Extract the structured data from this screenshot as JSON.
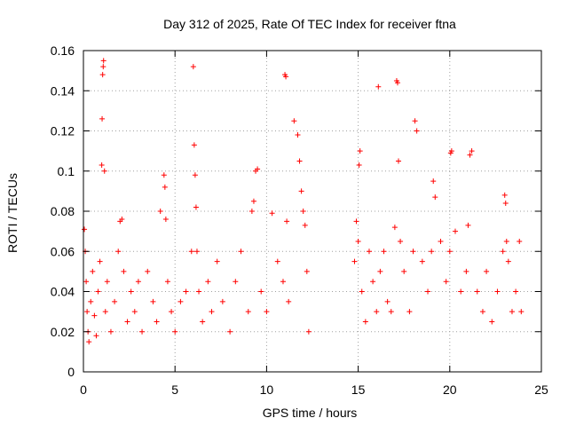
{
  "chart_data": {
    "type": "scatter",
    "title": "Day 312 of 2025, Rate Of TEC Index for receiver ftna",
    "xlabel": "GPS time / hours",
    "ylabel": "ROTI / TECUs",
    "xlim": [
      0,
      25
    ],
    "ylim": [
      0,
      0.16
    ],
    "xticks": [
      0,
      5,
      10,
      15,
      20,
      25
    ],
    "yticks": [
      0,
      0.02,
      0.04,
      0.06,
      0.08,
      0.1,
      0.12,
      0.14,
      0.16
    ],
    "xtick_labels": [
      "0",
      "5",
      "10",
      "15",
      "20",
      "25"
    ],
    "ytick_labels": [
      "0",
      "0.02",
      "0.04",
      "0.06",
      "0.08",
      "0.1",
      "0.12",
      "0.14",
      "0.16"
    ],
    "grid": true,
    "legend": "none",
    "marker": "+",
    "color": "#ff0000",
    "series": [
      {
        "x": [
          0.05,
          0.1,
          0.15,
          0.2,
          0.25,
          0.3,
          0.4,
          0.5,
          0.6,
          0.7,
          0.8,
          0.9,
          1.0,
          1.02,
          1.05,
          1.08,
          1.1,
          1.15,
          1.2,
          1.3,
          1.5,
          1.7,
          1.9,
          2.0,
          2.1,
          2.2,
          2.4,
          2.6,
          2.8,
          3.0,
          3.2,
          3.5,
          3.8,
          4.0,
          4.2,
          4.4,
          4.45,
          4.5,
          4.6,
          4.8,
          5.0,
          5.3,
          5.6,
          5.9,
          6.0,
          6.05,
          6.1,
          6.15,
          6.2,
          6.3,
          6.5,
          6.8,
          7.0,
          7.3,
          7.6,
          8.0,
          8.3,
          8.6,
          9.0,
          9.2,
          9.3,
          9.4,
          9.5,
          9.7,
          10.0,
          10.3,
          10.6,
          10.9,
          11.0,
          11.05,
          11.1,
          11.2,
          11.5,
          11.7,
          11.8,
          11.9,
          12.0,
          12.1,
          12.2,
          12.3,
          14.8,
          14.9,
          15.0,
          15.05,
          15.1,
          15.2,
          15.4,
          15.6,
          15.8,
          16.0,
          16.1,
          16.2,
          16.4,
          16.6,
          16.8,
          17.0,
          17.1,
          17.15,
          17.2,
          17.3,
          17.5,
          17.8,
          18.0,
          18.1,
          18.2,
          18.5,
          18.8,
          19.0,
          19.1,
          19.2,
          19.5,
          19.8,
          20.0,
          20.05,
          20.1,
          20.3,
          20.6,
          20.9,
          21.0,
          21.1,
          21.2,
          21.5,
          21.8,
          22.0,
          22.3,
          22.6,
          22.9,
          23.0,
          23.05,
          23.1,
          23.2,
          23.4,
          23.6,
          23.8,
          23.9
        ],
        "y": [
          0.071,
          0.06,
          0.045,
          0.03,
          0.02,
          0.015,
          0.035,
          0.05,
          0.028,
          0.018,
          0.04,
          0.055,
          0.103,
          0.126,
          0.148,
          0.152,
          0.155,
          0.1,
          0.03,
          0.045,
          0.02,
          0.035,
          0.06,
          0.075,
          0.076,
          0.05,
          0.025,
          0.04,
          0.03,
          0.045,
          0.02,
          0.05,
          0.035,
          0.025,
          0.08,
          0.098,
          0.092,
          0.076,
          0.045,
          0.03,
          0.02,
          0.035,
          0.04,
          0.06,
          0.152,
          0.113,
          0.098,
          0.082,
          0.06,
          0.04,
          0.025,
          0.045,
          0.03,
          0.055,
          0.035,
          0.02,
          0.045,
          0.06,
          0.03,
          0.08,
          0.085,
          0.1,
          0.101,
          0.04,
          0.03,
          0.079,
          0.055,
          0.045,
          0.148,
          0.147,
          0.075,
          0.035,
          0.125,
          0.118,
          0.105,
          0.09,
          0.08,
          0.073,
          0.05,
          0.02,
          0.055,
          0.075,
          0.065,
          0.103,
          0.11,
          0.04,
          0.025,
          0.06,
          0.045,
          0.03,
          0.142,
          0.05,
          0.06,
          0.035,
          0.03,
          0.072,
          0.145,
          0.144,
          0.105,
          0.065,
          0.05,
          0.03,
          0.06,
          0.125,
          0.12,
          0.055,
          0.04,
          0.06,
          0.095,
          0.087,
          0.065,
          0.045,
          0.06,
          0.109,
          0.11,
          0.07,
          0.04,
          0.05,
          0.073,
          0.108,
          0.11,
          0.04,
          0.03,
          0.05,
          0.025,
          0.04,
          0.06,
          0.088,
          0.084,
          0.065,
          0.055,
          0.03,
          0.04,
          0.065,
          0.03
        ]
      }
    ]
  }
}
